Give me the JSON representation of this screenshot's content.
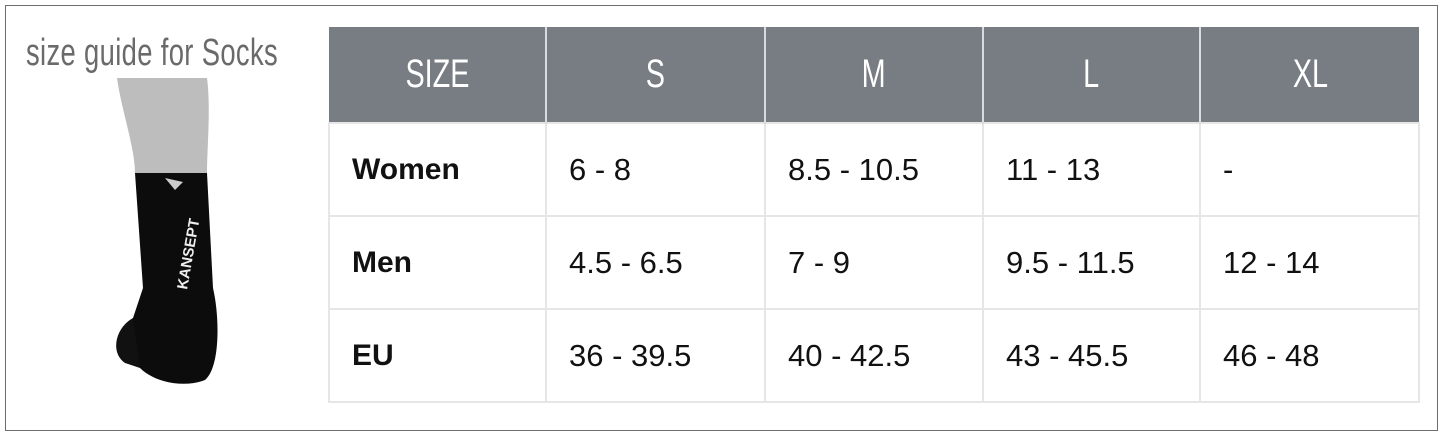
{
  "title": "size guide for Socks",
  "photo": {
    "brand_text": "KANSEPT",
    "icon": "sock-photo"
  },
  "table": {
    "header": [
      "SIZE",
      "S",
      "M",
      "L",
      "XL"
    ],
    "rows": [
      {
        "label": "Women",
        "values": [
          "6 - 8",
          "8.5 - 10.5",
          "11 - 13",
          "-"
        ]
      },
      {
        "label": "Men",
        "values": [
          "4.5 - 6.5",
          "7 - 9",
          "9.5 - 11.5",
          "12 - 14"
        ]
      },
      {
        "label": "EU",
        "values": [
          "36 - 39.5",
          "40 - 42.5",
          "43 - 45.5",
          "46 - 48"
        ]
      }
    ]
  },
  "colors": {
    "header_bg": "#777d83",
    "title": "#6a6a6a"
  }
}
